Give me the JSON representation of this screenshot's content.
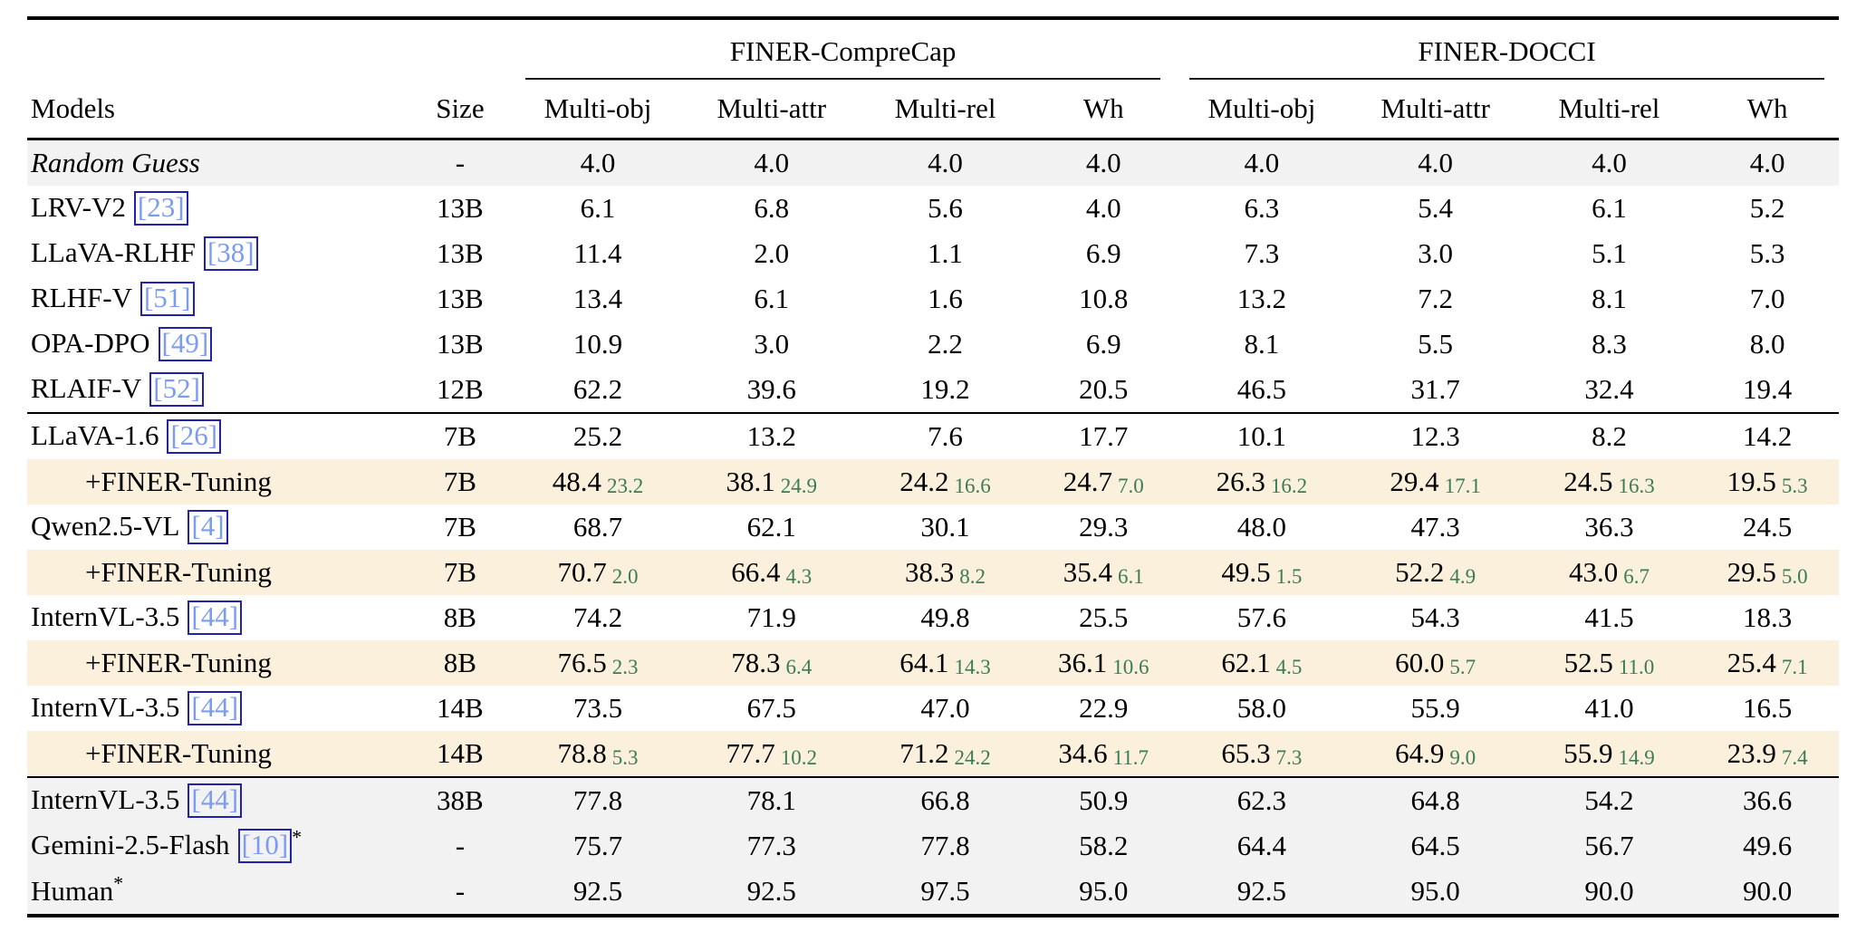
{
  "table": {
    "group_headers": {
      "comprecap": "FINER-CompreCap",
      "docci": "FINER-DOCCI"
    },
    "columns": {
      "models": "Models",
      "size": "Size"
    },
    "sub_columns": [
      "Multi-obj",
      "Multi-attr",
      "Multi-rel",
      "Wh"
    ],
    "colors": {
      "delta_green": "#3a7d52",
      "highlight_beige": "#faf0db",
      "band_gray": "#f2f2f2",
      "citation_text_blue": "#7b9cf0",
      "citation_border_blue": "#2121ac"
    },
    "rows": [
      {
        "label": "Random Guess",
        "cite": null,
        "star": false,
        "italic": true,
        "indent": false,
        "bg": "gray",
        "rule_after": false,
        "size": "-",
        "cells": [
          [
            "4.0"
          ],
          [
            "4.0"
          ],
          [
            "4.0"
          ],
          [
            "4.0"
          ],
          [
            "4.0"
          ],
          [
            "4.0"
          ],
          [
            "4.0"
          ],
          [
            "4.0"
          ]
        ]
      },
      {
        "label": "LRV-V2",
        "cite": "23",
        "star": false,
        "italic": false,
        "indent": false,
        "bg": null,
        "rule_after": false,
        "size": "13B",
        "cells": [
          [
            "6.1"
          ],
          [
            "6.8"
          ],
          [
            "5.6"
          ],
          [
            "4.0"
          ],
          [
            "6.3"
          ],
          [
            "5.4"
          ],
          [
            "6.1"
          ],
          [
            "5.2"
          ]
        ]
      },
      {
        "label": "LLaVA-RLHF",
        "cite": "38",
        "star": false,
        "italic": false,
        "indent": false,
        "bg": null,
        "rule_after": false,
        "size": "13B",
        "cells": [
          [
            "11.4"
          ],
          [
            "2.0"
          ],
          [
            "1.1"
          ],
          [
            "6.9"
          ],
          [
            "7.3"
          ],
          [
            "3.0"
          ],
          [
            "5.1"
          ],
          [
            "5.3"
          ]
        ]
      },
      {
        "label": "RLHF-V",
        "cite": "51",
        "star": false,
        "italic": false,
        "indent": false,
        "bg": null,
        "rule_after": false,
        "size": "13B",
        "cells": [
          [
            "13.4"
          ],
          [
            "6.1"
          ],
          [
            "1.6"
          ],
          [
            "10.8"
          ],
          [
            "13.2"
          ],
          [
            "7.2"
          ],
          [
            "8.1"
          ],
          [
            "7.0"
          ]
        ]
      },
      {
        "label": "OPA-DPO",
        "cite": "49",
        "star": false,
        "italic": false,
        "indent": false,
        "bg": null,
        "rule_after": false,
        "size": "13B",
        "cells": [
          [
            "10.9"
          ],
          [
            "3.0"
          ],
          [
            "2.2"
          ],
          [
            "6.9"
          ],
          [
            "8.1"
          ],
          [
            "5.5"
          ],
          [
            "8.3"
          ],
          [
            "8.0"
          ]
        ]
      },
      {
        "label": "RLAIF-V",
        "cite": "52",
        "star": false,
        "italic": false,
        "indent": false,
        "bg": null,
        "rule_after": true,
        "size": "12B",
        "cells": [
          [
            "62.2"
          ],
          [
            "39.6"
          ],
          [
            "19.2"
          ],
          [
            "20.5"
          ],
          [
            "46.5"
          ],
          [
            "31.7"
          ],
          [
            "32.4"
          ],
          [
            "19.4"
          ]
        ]
      },
      {
        "label": "LLaVA-1.6",
        "cite": "26",
        "star": false,
        "italic": false,
        "indent": false,
        "bg": null,
        "rule_after": false,
        "size": "7B",
        "cells": [
          [
            "25.2"
          ],
          [
            "13.2"
          ],
          [
            "7.6"
          ],
          [
            "17.7"
          ],
          [
            "10.1"
          ],
          [
            "12.3"
          ],
          [
            "8.2"
          ],
          [
            "14.2"
          ]
        ]
      },
      {
        "label": "+FINER-Tuning",
        "cite": null,
        "star": false,
        "italic": false,
        "indent": true,
        "bg": "beige",
        "rule_after": false,
        "size": "7B",
        "cells": [
          [
            "48.4",
            "23.2"
          ],
          [
            "38.1",
            "24.9"
          ],
          [
            "24.2",
            "16.6"
          ],
          [
            "24.7",
            "7.0"
          ],
          [
            "26.3",
            "16.2"
          ],
          [
            "29.4",
            "17.1"
          ],
          [
            "24.5",
            "16.3"
          ],
          [
            "19.5",
            "5.3"
          ]
        ]
      },
      {
        "label": "Qwen2.5-VL",
        "cite": "4",
        "star": false,
        "italic": false,
        "indent": false,
        "bg": null,
        "rule_after": false,
        "size": "7B",
        "cells": [
          [
            "68.7"
          ],
          [
            "62.1"
          ],
          [
            "30.1"
          ],
          [
            "29.3"
          ],
          [
            "48.0"
          ],
          [
            "47.3"
          ],
          [
            "36.3"
          ],
          [
            "24.5"
          ]
        ]
      },
      {
        "label": "+FINER-Tuning",
        "cite": null,
        "star": false,
        "italic": false,
        "indent": true,
        "bg": "beige",
        "rule_after": false,
        "size": "7B",
        "cells": [
          [
            "70.7",
            "2.0"
          ],
          [
            "66.4",
            "4.3"
          ],
          [
            "38.3",
            "8.2"
          ],
          [
            "35.4",
            "6.1"
          ],
          [
            "49.5",
            "1.5"
          ],
          [
            "52.2",
            "4.9"
          ],
          [
            "43.0",
            "6.7"
          ],
          [
            "29.5",
            "5.0"
          ]
        ]
      },
      {
        "label": "InternVL-3.5",
        "cite": "44",
        "star": false,
        "italic": false,
        "indent": false,
        "bg": null,
        "rule_after": false,
        "size": "8B",
        "cells": [
          [
            "74.2"
          ],
          [
            "71.9"
          ],
          [
            "49.8"
          ],
          [
            "25.5"
          ],
          [
            "57.6"
          ],
          [
            "54.3"
          ],
          [
            "41.5"
          ],
          [
            "18.3"
          ]
        ]
      },
      {
        "label": "+FINER-Tuning",
        "cite": null,
        "star": false,
        "italic": false,
        "indent": true,
        "bg": "beige",
        "rule_after": false,
        "size": "8B",
        "cells": [
          [
            "76.5",
            "2.3"
          ],
          [
            "78.3",
            "6.4"
          ],
          [
            "64.1",
            "14.3"
          ],
          [
            "36.1",
            "10.6"
          ],
          [
            "62.1",
            "4.5"
          ],
          [
            "60.0",
            "5.7"
          ],
          [
            "52.5",
            "11.0"
          ],
          [
            "25.4",
            "7.1"
          ]
        ]
      },
      {
        "label": "InternVL-3.5",
        "cite": "44",
        "star": false,
        "italic": false,
        "indent": false,
        "bg": null,
        "rule_after": false,
        "size": "14B",
        "cells": [
          [
            "73.5"
          ],
          [
            "67.5"
          ],
          [
            "47.0"
          ],
          [
            "22.9"
          ],
          [
            "58.0"
          ],
          [
            "55.9"
          ],
          [
            "41.0"
          ],
          [
            "16.5"
          ]
        ]
      },
      {
        "label": "+FINER-Tuning",
        "cite": null,
        "star": false,
        "italic": false,
        "indent": true,
        "bg": "beige",
        "rule_after": true,
        "size": "14B",
        "cells": [
          [
            "78.8",
            "5.3"
          ],
          [
            "77.7",
            "10.2"
          ],
          [
            "71.2",
            "24.2"
          ],
          [
            "34.6",
            "11.7"
          ],
          [
            "65.3",
            "7.3"
          ],
          [
            "64.9",
            "9.0"
          ],
          [
            "55.9",
            "14.9"
          ],
          [
            "23.9",
            "7.4"
          ]
        ]
      },
      {
        "label": "InternVL-3.5",
        "cite": "44",
        "star": false,
        "italic": false,
        "indent": false,
        "bg": "gray",
        "rule_after": false,
        "size": "38B",
        "cells": [
          [
            "77.8"
          ],
          [
            "78.1"
          ],
          [
            "66.8"
          ],
          [
            "50.9"
          ],
          [
            "62.3"
          ],
          [
            "64.8"
          ],
          [
            "54.2"
          ],
          [
            "36.6"
          ]
        ]
      },
      {
        "label": "Gemini-2.5-Flash",
        "cite": "10",
        "star": true,
        "italic": false,
        "indent": false,
        "bg": "gray",
        "rule_after": false,
        "size": "-",
        "cells": [
          [
            "75.7"
          ],
          [
            "77.3"
          ],
          [
            "77.8"
          ],
          [
            "58.2"
          ],
          [
            "64.4"
          ],
          [
            "64.5"
          ],
          [
            "56.7"
          ],
          [
            "49.6"
          ]
        ]
      },
      {
        "label": "Human",
        "cite": null,
        "star": true,
        "italic": false,
        "indent": false,
        "bg": "gray",
        "rule_after": false,
        "size": "-",
        "cells": [
          [
            "92.5"
          ],
          [
            "92.5"
          ],
          [
            "97.5"
          ],
          [
            "95.0"
          ],
          [
            "92.5"
          ],
          [
            "95.0"
          ],
          [
            "90.0"
          ],
          [
            "90.0"
          ]
        ]
      }
    ]
  }
}
